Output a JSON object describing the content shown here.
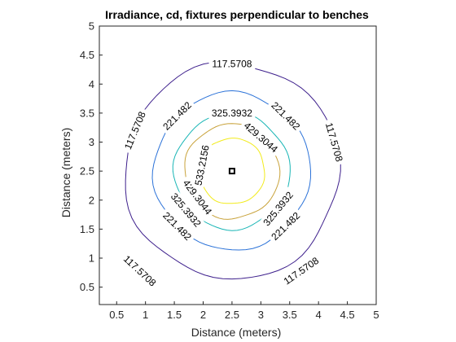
{
  "chart_data": {
    "type": "contour",
    "title": "Irradiance, cd, fixtures perpendicular to benches",
    "xlabel": "Distance (meters)",
    "ylabel": "Distance (meters)",
    "xlim": [
      0.2,
      5
    ],
    "ylim": [
      0.2,
      5
    ],
    "xticks": [
      "0.5",
      "1",
      "1.5",
      "2",
      "2.5",
      "3",
      "3.5",
      "4",
      "4.5",
      "5"
    ],
    "yticks": [
      "0.5",
      "1",
      "1.5",
      "2",
      "2.5",
      "3",
      "3.5",
      "4",
      "4.5",
      "5"
    ],
    "grid": false,
    "center": [
      2.5,
      2.5
    ],
    "marker": {
      "x": 2.5,
      "y": 2.5,
      "shape": "square"
    },
    "levels": [
      {
        "value": 117.5708,
        "label": "117.5708",
        "color": "#3d1f8c",
        "radius": 1.86,
        "labels_at": [
          {
            "x": 2.5,
            "y": 4.35
          },
          {
            "x": 4.27,
            "y": 3.0
          },
          {
            "x": 3.7,
            "y": 0.78
          },
          {
            "x": 0.9,
            "y": 0.78
          },
          {
            "x": 0.82,
            "y": 3.2
          }
        ]
      },
      {
        "value": 221.482,
        "label": "221.482",
        "color": "#2b72d8",
        "radius": 1.35,
        "labels_at": [
          {
            "x": 1.55,
            "y": 3.45
          },
          {
            "x": 3.43,
            "y": 3.45
          },
          {
            "x": 3.43,
            "y": 1.55
          },
          {
            "x": 1.55,
            "y": 1.55
          }
        ]
      },
      {
        "value": 325.3932,
        "label": "325.3932",
        "color": "#18b5b5",
        "radius": 1.0,
        "labels_at": [
          {
            "x": 2.5,
            "y": 3.5
          },
          {
            "x": 3.3,
            "y": 1.85
          },
          {
            "x": 1.7,
            "y": 1.83
          }
        ]
      },
      {
        "value": 429.3044,
        "label": "429.3044",
        "color": "#c8a23a",
        "radius": 0.82,
        "labels_at": [
          {
            "x": 3.0,
            "y": 3.08
          },
          {
            "x": 1.9,
            "y": 2.05
          }
        ]
      },
      {
        "value": 533.2156,
        "label": "533.2156",
        "color": "#f2eb1c",
        "radius": 0.57,
        "labels_at": [
          {
            "x": 1.98,
            "y": 2.6
          }
        ]
      }
    ]
  }
}
